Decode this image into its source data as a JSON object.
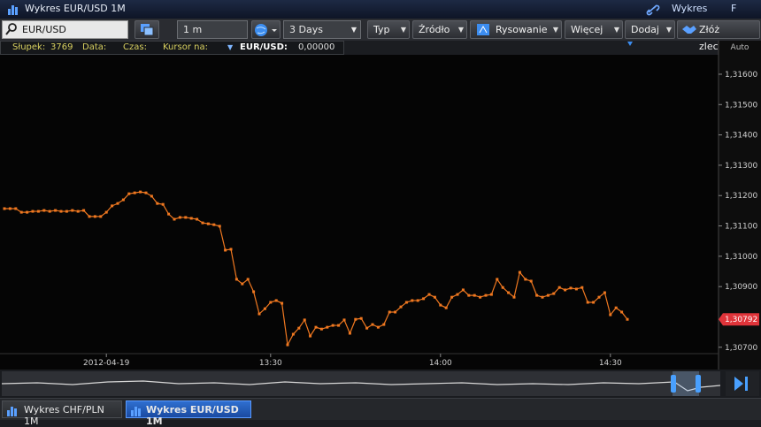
{
  "window": {
    "title": "Wykres EUR/USD 1M",
    "menu": [
      "Wykres",
      "F"
    ]
  },
  "toolbar": {
    "symbol": "EUR/USD",
    "interval": "1 m",
    "range": "3 Days",
    "buttons": [
      "Typ",
      "Źródło",
      "Rysowanie",
      "Więcej",
      "Dodaj"
    ],
    "order_button": "Złóż zlecenie"
  },
  "info_bar": {
    "bar_label": "Słupek:",
    "bar_value": "3769",
    "date_label": "Data:",
    "time_label": "Czas:",
    "cursor_label": "Kursor na:",
    "series_label": "EUR/USD:",
    "series_value": "0,00000"
  },
  "chart_data": {
    "type": "line",
    "scale_mode": "Auto",
    "categories": [
      null,
      null,
      null,
      null,
      null,
      null,
      null,
      null,
      null,
      null,
      null,
      null,
      null,
      null,
      null,
      null,
      null,
      null,
      "2012-04-19",
      null,
      null,
      null,
      null,
      null,
      null,
      null,
      null,
      null,
      null,
      null,
      null,
      null,
      null,
      null,
      null,
      null,
      null,
      null,
      null,
      null,
      null,
      null,
      null,
      null,
      null,
      null,
      null,
      "13:30",
      null,
      null,
      null,
      null,
      null,
      null,
      null,
      null,
      null,
      null,
      null,
      null,
      null,
      null,
      null,
      null,
      null,
      null,
      null,
      null,
      null,
      null,
      null,
      null,
      null,
      null,
      null,
      null,
      null,
      "14:00",
      null,
      null,
      null,
      null,
      null,
      null,
      null,
      null,
      null,
      null,
      null,
      null,
      null,
      null,
      null,
      null,
      null,
      null,
      null,
      null,
      null,
      null,
      null,
      null,
      null,
      null,
      null,
      null,
      null,
      "14:30",
      null,
      null,
      null
    ],
    "series": [
      {
        "color": "#f07820",
        "values": [
          1.31157,
          1.31157,
          1.31157,
          1.31145,
          1.31145,
          1.31148,
          1.31148,
          1.31151,
          1.31148,
          1.31151,
          1.31148,
          1.31148,
          1.31151,
          1.31148,
          1.31151,
          1.31131,
          1.31131,
          1.31131,
          1.31145,
          1.31166,
          1.31174,
          1.31186,
          1.31206,
          1.31209,
          1.31212,
          1.31209,
          1.31198,
          1.31174,
          1.31171,
          1.31139,
          1.31122,
          1.31128,
          1.31128,
          1.31125,
          1.31122,
          1.3111,
          1.31107,
          1.31104,
          1.31099,
          1.3102,
          1.31023,
          1.30924,
          1.30909,
          1.30924,
          1.30883,
          1.3081,
          1.30827,
          1.30848,
          1.30854,
          1.30845,
          1.30708,
          1.30743,
          1.30763,
          1.3079,
          1.30737,
          1.30766,
          1.3076,
          1.30766,
          1.30772,
          1.30772,
          1.3079,
          1.30746,
          1.30792,
          1.30795,
          1.30763,
          1.30775,
          1.30766,
          1.30775,
          1.30816,
          1.30816,
          1.30833,
          1.30848,
          1.30854,
          1.30854,
          1.3086,
          1.30874,
          1.30865,
          1.30839,
          1.3083,
          1.30865,
          1.30874,
          1.30889,
          1.30871,
          1.30871,
          1.30865,
          1.30871,
          1.30874,
          1.30924,
          1.30897,
          1.3088,
          1.30865,
          1.30947,
          1.30924,
          1.30918,
          1.30871,
          1.30865,
          1.30871,
          1.30877,
          1.30897,
          1.30889,
          1.30895,
          1.30892,
          1.30897,
          1.30848,
          1.30848,
          1.30865,
          1.3088,
          1.30807,
          1.3083,
          1.30816,
          1.30792
        ]
      }
    ],
    "ylim": [
      1.30679,
      1.31664
    ],
    "yticks": [
      {
        "value": 1.316,
        "label": "1,31600"
      },
      {
        "value": 1.315,
        "label": "1,31500"
      },
      {
        "value": 1.314,
        "label": "1,31400"
      },
      {
        "value": 1.313,
        "label": "1,31300"
      },
      {
        "value": 1.312,
        "label": "1,31200"
      },
      {
        "value": 1.311,
        "label": "1,31100"
      },
      {
        "value": 1.31,
        "label": "1,31000"
      },
      {
        "value": 1.309,
        "label": "1,30900"
      },
      {
        "value": 1.307,
        "label": "1,30700"
      }
    ],
    "current_price": {
      "value": 1.30792,
      "label": "1,30792"
    }
  },
  "tabs": [
    "Wykres CHF/PLN 1M",
    "Wykres EUR/USD 1M"
  ],
  "active_tab": 1
}
